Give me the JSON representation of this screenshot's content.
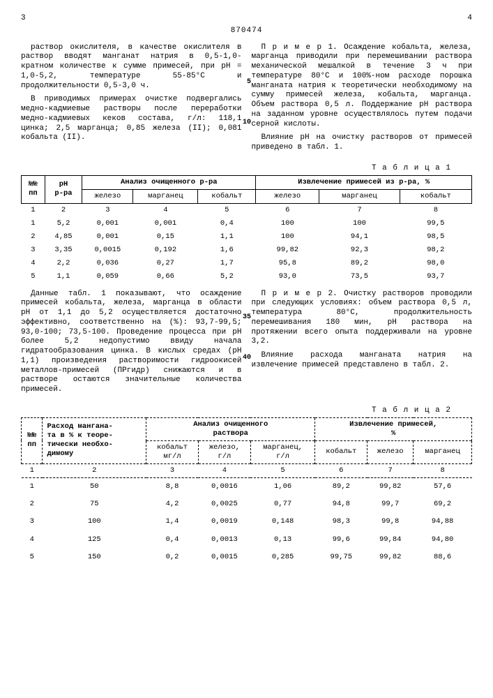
{
  "doc_number": "870474",
  "page_left": "3",
  "page_right": "4",
  "line_marks": {
    "m5": "5",
    "m10": "10",
    "m35": "35",
    "m40": "40"
  },
  "left_col": {
    "p1": "раствор окислителя, в качестве окислителя в раствор вводят манганат натрия в 0,5-1,0-кратном количестве к сумме примесей, при pH = 1,0-5,2, температуре 55-85°С и продолжительности 0,5-3,0 ч.",
    "p2": "В приводимых примерах очистке подвергались медно-кадмиевые растворы после переработки медно-кадмиевых кеков состава, г/л: 118,1 цинка; 2,5 марганца; 0,85 железа (II); 0,081 кобальта (II)."
  },
  "right_col": {
    "p1": "П р и м е р 1. Осаждение кобальта, железа, марганца приводили при перемешивании раствора механической мешалкой в течение 3 ч при температуре 80°С и 100%-ном расходе порошка манганата натрия к теоретически необходимому на сумму примесей железа, кобальта, марганца. Объем раствора 0,5 л. Поддержание pH раствора на заданном уровне осуществлялось путем подачи серной кислоты.",
    "p2": "Влияние pH на очистку растворов от примесей приведено в табл. 1."
  },
  "table1_label": "Т а б л и ц а  1",
  "table1": {
    "head": {
      "c1": "№№\nпп",
      "c2": "pH\nр-ра",
      "g1": "Анализ очищенного р-ра",
      "g2": "Извлечение примесей из р-ра, %",
      "s": [
        "железо",
        "марганец",
        "кобальт",
        "железо",
        "марганец",
        "кобальт"
      ],
      "nums": [
        "1",
        "2",
        "3",
        "4",
        "5",
        "6",
        "7",
        "8"
      ]
    },
    "rows": [
      [
        "1",
        "5,2",
        "0,001",
        "0,001",
        "0,4",
        "100",
        "100",
        "99,5"
      ],
      [
        "2",
        "4,85",
        "0,001",
        "0,15",
        "1,1",
        "100",
        "94,1",
        "98,5"
      ],
      [
        "3",
        "3,35",
        "0,0015",
        "0,192",
        "1,6",
        "99,82",
        "92,3",
        "98,2"
      ],
      [
        "4",
        "2,2",
        "0,036",
        "0,27",
        "1,7",
        "95,8",
        "89,2",
        "98,0"
      ],
      [
        "5",
        "1,1",
        "0,059",
        "0,66",
        "5,2",
        "93,0",
        "73,5",
        "93,7"
      ]
    ]
  },
  "mid_left": {
    "p1": "Данные табл. 1 показывают, что осаждение примесей кобальта, железа, марганца в области pH от 1,1 до 5,2 осуществляется достаточно эффективно, соответственно на (%): 93,7-99,5; 93,0-100; 73,5-100. Проведение процесса при pH более 5,2 недопустимо ввиду начала гидратообразования цинка. В кислых средах (pH 1,1) произведения растворимости гидроокисей металлов-примесей (ПРгидр) снижаются и в растворе остаются значительные количества примесей."
  },
  "mid_right": {
    "p1": "П р и м е р  2. Очистку растворов проводили при следующих условиях: объем раствора 0,5 л, температура 80°С, продолжительность перемешивания 180 мин, pH раствора на протяжении всего опыта поддерживали на уровне 3,2.",
    "p2": "Влияние расхода манганата натрия на извлечение примесей представлено в табл. 2."
  },
  "table2_label": "Т а б л и ц а  2",
  "table2": {
    "head": {
      "c1": "№№\nпп",
      "c2": "Расход мангана-\nта в % к теоре-\nтически необхо-\nдимому",
      "g1": "Анализ очищенного\nраствора",
      "g2": "Извлечение примесей,\n%",
      "s": [
        "кобальт\nмг/л",
        "железо,\nг/л",
        "марганец,\nг/л",
        "кобальт",
        "железо",
        "марганец"
      ],
      "nums": [
        "1",
        "2",
        "3",
        "4",
        "5",
        "6",
        "7",
        "8"
      ]
    },
    "rows": [
      [
        "1",
        "50",
        "8,8",
        "0,0016",
        "1,06",
        "89,2",
        "99,82",
        "57,6"
      ],
      [
        "2",
        "75",
        "4,2",
        "0,0025",
        "0,77",
        "94,8",
        "99,7",
        "69,2"
      ],
      [
        "3",
        "100",
        "1,4",
        "0,0019",
        "0,148",
        "98,3",
        "99,8",
        "94,88"
      ],
      [
        "4",
        "125",
        "0,4",
        "0,0013",
        "0,13",
        "99,6",
        "99,84",
        "94,80"
      ],
      [
        "5",
        "150",
        "0,2",
        "0,0015",
        "0,285",
        "99,75",
        "99,82",
        "88,6"
      ]
    ]
  }
}
